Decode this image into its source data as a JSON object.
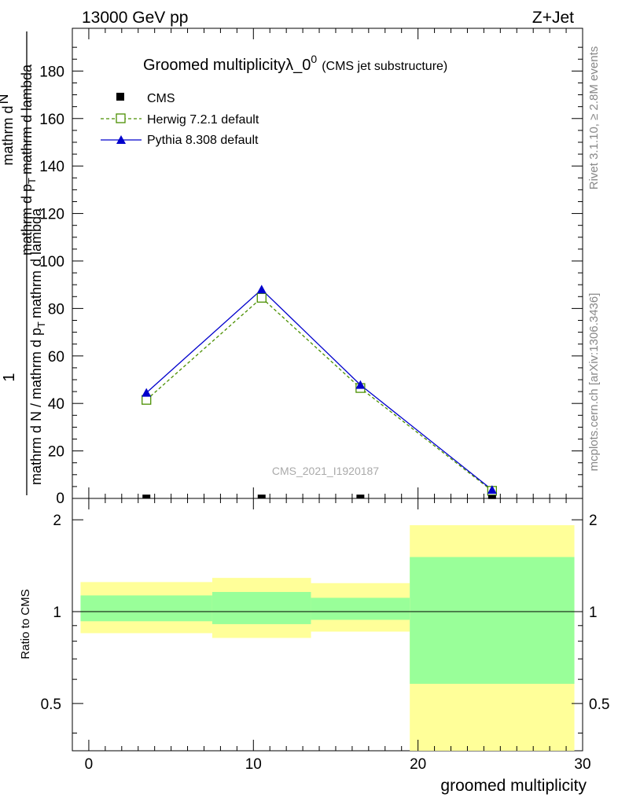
{
  "header": {
    "energy_label": "13000 GeV pp",
    "process_label": "Z+Jet"
  },
  "side_labels": {
    "rivet": "Rivet 3.1.10, ≥ 2.8M events",
    "mcplots": "mcplots.cern.ch [arXiv:1306.3436]"
  },
  "watermark": "CMS_2021_I1920187",
  "colors": {
    "herwig": "#4a8f00",
    "pythia": "#0000cc",
    "cms": "#000000",
    "band_inner": "#99ff99",
    "band_outer": "#ffff99"
  },
  "chart_data": [
    {
      "type": "line",
      "title_main": "Groomed multiplicityλ_0",
      "title_sup": "0",
      "title_sub": "(CMS jet substructure)",
      "ylabel_parts": {
        "one": "1",
        "denominator": "mathrm d N / mathrm d p",
        "denominator_sub": "T",
        "denominator_rest": "mathrm d lambda",
        "numerator_a": "mathrm d",
        "numerator_b": "N",
        "numerator_line2": "mathrm d p",
        "numerator_line2_sub": "T",
        "numerator_line2_rest": "mathrm d lambda"
      },
      "xlim": [
        -1,
        30
      ],
      "ylim": [
        0,
        198
      ],
      "y_ticks": [
        20,
        40,
        60,
        80,
        100,
        120,
        140,
        160,
        180
      ],
      "y_tick_labels": [
        "20",
        "40",
        "60",
        "80",
        "100",
        "120",
        "140",
        "160",
        "180"
      ],
      "y_zero_label": "0",
      "legend_position": "top-left",
      "series": [
        {
          "name": "CMS",
          "marker": "square",
          "x": [
            3.5,
            10.5,
            16.5,
            24.5
          ],
          "y": [
            0.6,
            0.6,
            0.6,
            0.4
          ]
        },
        {
          "name": "Herwig 7.2.1 default",
          "marker": "open-square",
          "line": "dashed",
          "x": [
            3.5,
            10.5,
            16.5,
            24.5
          ],
          "y": [
            41.5,
            84.5,
            46.5,
            3.2
          ]
        },
        {
          "name": "Pythia 8.308 default",
          "marker": "triangle",
          "line": "solid",
          "x": [
            3.5,
            10.5,
            16.5,
            24.5
          ],
          "y": [
            44.5,
            88.0,
            47.8,
            3.6
          ]
        }
      ]
    },
    {
      "type": "area",
      "ylabel": "Ratio to CMS",
      "xlabel": "groomed multiplicity",
      "xlim": [
        -1,
        30
      ],
      "ylim": [
        0.35,
        2.35
      ],
      "x_ticks": [
        0,
        10,
        20,
        30
      ],
      "x_tick_labels": [
        "0",
        "10",
        "20",
        "30"
      ],
      "y_ticks": [
        0.5,
        1,
        2
      ],
      "y_tick_labels": [
        "0.5",
        "1",
        "2"
      ],
      "bins": [
        {
          "x0": -0.5,
          "x1": 7.5,
          "inner": [
            0.93,
            1.13
          ],
          "outer": [
            0.85,
            1.25
          ]
        },
        {
          "x0": 7.5,
          "x1": 13.5,
          "inner": [
            0.91,
            1.16
          ],
          "outer": [
            0.82,
            1.29
          ]
        },
        {
          "x0": 13.5,
          "x1": 19.5,
          "inner": [
            0.94,
            1.11
          ],
          "outer": [
            0.86,
            1.24
          ]
        },
        {
          "x0": 19.5,
          "x1": 29.5,
          "inner": [
            0.58,
            1.51
          ],
          "outer": [
            0.35,
            1.92
          ]
        }
      ],
      "reference_line": 1
    }
  ]
}
